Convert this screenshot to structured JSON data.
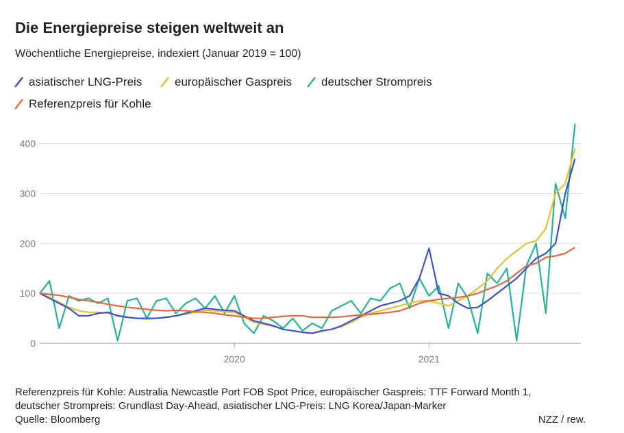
{
  "chart_data": {
    "type": "line",
    "title": "Die Energiepreise steigen weltweit an",
    "subtitle": "Wöchentliche Energiepreise, indexiert (Januar 2019 = 100)",
    "x": [
      2019,
      2019.05,
      2019.1,
      2019.15,
      2019.2,
      2019.25,
      2019.3,
      2019.35,
      2019.4,
      2019.45,
      2019.5,
      2019.55,
      2019.6,
      2019.65,
      2019.7,
      2019.75,
      2019.8,
      2019.85,
      2019.9,
      2019.95,
      2020,
      2020.05,
      2020.1,
      2020.15,
      2020.2,
      2020.25,
      2020.3,
      2020.35,
      2020.4,
      2020.45,
      2020.5,
      2020.55,
      2020.6,
      2020.65,
      2020.7,
      2020.75,
      2020.8,
      2020.85,
      2020.9,
      2020.95,
      2021,
      2021.05,
      2021.1,
      2021.15,
      2021.2,
      2021.25,
      2021.3,
      2021.35,
      2021.4,
      2021.45,
      2021.5,
      2021.55,
      2021.6,
      2021.65,
      2021.7,
      2021.75
    ],
    "xlim": [
      2019,
      2021.78
    ],
    "xticks": [
      2020,
      2021
    ],
    "ylim": [
      0,
      420
    ],
    "yticks": [
      0,
      100,
      200,
      300,
      400
    ],
    "grid": true,
    "series": [
      {
        "name": "asiatischer LNG-Preis",
        "color": "#3a4fd6",
        "values": [
          100,
          90,
          80,
          70,
          55,
          55,
          60,
          62,
          55,
          52,
          50,
          50,
          50,
          52,
          55,
          60,
          65,
          70,
          68,
          66,
          65,
          55,
          45,
          40,
          35,
          28,
          25,
          22,
          20,
          25,
          28,
          35,
          45,
          55,
          65,
          75,
          80,
          85,
          95,
          130,
          190,
          100,
          95,
          80,
          70,
          72,
          85,
          100,
          115,
          130,
          150,
          170,
          180,
          200,
          300,
          370
        ]
      },
      {
        "name": "europäischer Gaspreis",
        "color": "#e8c02a",
        "values": [
          100,
          92,
          82,
          72,
          65,
          62,
          62,
          60,
          56,
          52,
          50,
          48,
          50,
          52,
          55,
          58,
          62,
          66,
          65,
          63,
          62,
          52,
          42,
          38,
          34,
          28,
          25,
          22,
          20,
          24,
          28,
          33,
          42,
          52,
          60,
          65,
          70,
          75,
          80,
          85,
          85,
          80,
          75,
          85,
          95,
          110,
          125,
          150,
          170,
          185,
          200,
          205,
          230,
          300,
          320,
          390
        ]
      },
      {
        "name": "deutscher Strompreis",
        "color": "#1fb59a",
        "values": [
          100,
          125,
          30,
          95,
          85,
          90,
          80,
          90,
          5,
          85,
          90,
          50,
          85,
          90,
          60,
          80,
          90,
          70,
          95,
          60,
          95,
          40,
          20,
          55,
          45,
          30,
          50,
          25,
          40,
          30,
          65,
          75,
          85,
          60,
          90,
          85,
          110,
          120,
          70,
          130,
          95,
          115,
          30,
          120,
          90,
          20,
          140,
          120,
          150,
          5,
          155,
          200,
          60,
          320,
          250,
          440
        ]
      },
      {
        "name": "Referenzpreis für Kohle",
        "color": "#e8663d",
        "values": [
          100,
          98,
          96,
          92,
          88,
          85,
          82,
          78,
          75,
          72,
          70,
          68,
          66,
          65,
          66,
          65,
          63,
          62,
          60,
          57,
          55,
          52,
          50,
          50,
          52,
          54,
          55,
          55,
          52,
          52,
          52,
          53,
          55,
          57,
          58,
          60,
          62,
          65,
          72,
          80,
          85,
          88,
          90,
          92,
          95,
          100,
          108,
          115,
          125,
          140,
          155,
          160,
          172,
          175,
          180,
          192
        ]
      }
    ],
    "notes": [
      "Referenzpreis für Kohle: Australia Newcastle Port FOB Spot Price, europäischer Gaspreis: TTF Forward Month 1,",
      "deutscher Strompreis: Grundlast Day-Ahead, asiatischer LNG-Preis: LNG Korea/Japan-Marker",
      "Quelle: Bloomberg"
    ],
    "credit": "NZZ / rew."
  }
}
